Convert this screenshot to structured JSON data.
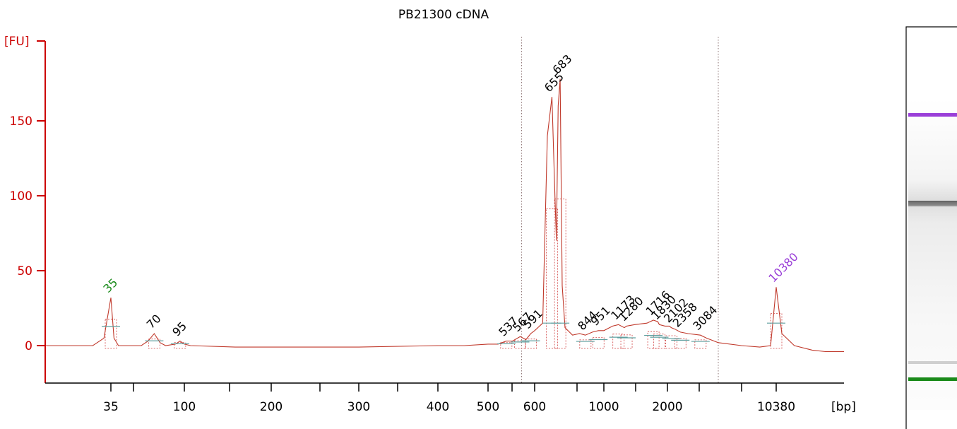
{
  "chart_data": {
    "type": "line",
    "title": "PB21300 cDNA",
    "ylabel": "[FU]",
    "xlabel": "[bp]",
    "ylim": [
      -22,
      192
    ],
    "y_ticks": [
      0,
      50,
      100,
      150
    ],
    "x_tick_labels": [
      "35",
      "100",
      "200",
      "300",
      "400",
      "500",
      "600",
      "1000",
      "2000",
      "10380"
    ],
    "x_tick_positions_bp": [
      35,
      100,
      200,
      300,
      400,
      500,
      600,
      1000,
      2000,
      10380
    ],
    "x_axis_scale": "non-linear (electropherogram time axis, ladder-calibrated bp)",
    "region_markers_bp": [
      570,
      4500
    ],
    "series": [
      {
        "x": [
          20,
          30,
          33,
          35,
          37,
          40,
          60,
          65,
          70,
          75,
          80,
          90,
          95,
          100,
          105,
          150,
          200,
          300,
          400,
          450,
          500,
          520,
          537,
          550,
          567,
          580,
          591,
          600,
          625,
          640,
          655,
          665,
          670,
          676,
          683,
          690,
          700,
          750,
          800,
          844,
          900,
          951,
          1000,
          1100,
          1173,
          1250,
          1280,
          1400,
          1600,
          1716,
          1800,
          1830,
          1950,
          2050,
          2102,
          2200,
          2358,
          2600,
          3084,
          3500,
          4500,
          6000,
          8000,
          9500,
          10380,
          11000,
          12500,
          15000,
          20000,
          30000
        ],
        "values": [
          0,
          0,
          5,
          32,
          5,
          0,
          0,
          3,
          8,
          2,
          0,
          1,
          3,
          1,
          0,
          -1,
          -1,
          -1,
          0,
          0,
          1,
          1,
          3,
          3,
          6,
          4,
          8,
          10,
          15,
          140,
          166,
          100,
          70,
          160,
          178,
          40,
          12,
          7,
          8,
          7,
          9,
          10,
          10,
          13,
          14,
          12,
          13,
          14,
          15,
          17,
          16,
          14,
          13,
          13,
          12,
          11,
          9,
          8,
          7,
          5,
          2,
          0,
          -1,
          0,
          39,
          8,
          0,
          -3,
          -4,
          -4
        ]
      }
    ],
    "peaks": [
      {
        "label": "35",
        "x": 35,
        "y": 32,
        "color": "#1a8a1a"
      },
      {
        "label": "70",
        "x": 70,
        "y": 8,
        "color": "#000000"
      },
      {
        "label": "95",
        "x": 95,
        "y": 3,
        "color": "#000000"
      },
      {
        "label": "537",
        "x": 537,
        "y": 3,
        "color": "#000000"
      },
      {
        "label": "567",
        "x": 567,
        "y": 6,
        "color": "#000000"
      },
      {
        "label": "591",
        "x": 591,
        "y": 8,
        "color": "#000000"
      },
      {
        "label": "655",
        "x": 655,
        "y": 166,
        "color": "#000000"
      },
      {
        "label": "683",
        "x": 683,
        "y": 178,
        "color": "#000000"
      },
      {
        "label": "844",
        "x": 844,
        "y": 7,
        "color": "#000000"
      },
      {
        "label": "951",
        "x": 951,
        "y": 10,
        "color": "#000000"
      },
      {
        "label": "1173",
        "x": 1173,
        "y": 14,
        "color": "#000000"
      },
      {
        "label": "1280",
        "x": 1280,
        "y": 13,
        "color": "#000000"
      },
      {
        "label": "1716",
        "x": 1716,
        "y": 17,
        "color": "#000000"
      },
      {
        "label": "1830",
        "x": 1830,
        "y": 14,
        "color": "#000000"
      },
      {
        "label": "2102",
        "x": 2102,
        "y": 12,
        "color": "#000000"
      },
      {
        "label": "2358",
        "x": 2358,
        "y": 9,
        "color": "#000000"
      },
      {
        "label": "3084",
        "x": 3084,
        "y": 7,
        "color": "#000000"
      },
      {
        "label": "10380",
        "x": 10380,
        "y": 39,
        "color": "#9a3fd8"
      }
    ],
    "gel_lane": {
      "bands": [
        {
          "type": "upper-marker",
          "color": "#9a3fd8",
          "bp": 10380
        },
        {
          "type": "sample",
          "color": "#000000",
          "bp": 655
        },
        {
          "type": "lower-marker",
          "color": "#1a8a1a",
          "bp": 35
        }
      ]
    },
    "grid": false
  }
}
